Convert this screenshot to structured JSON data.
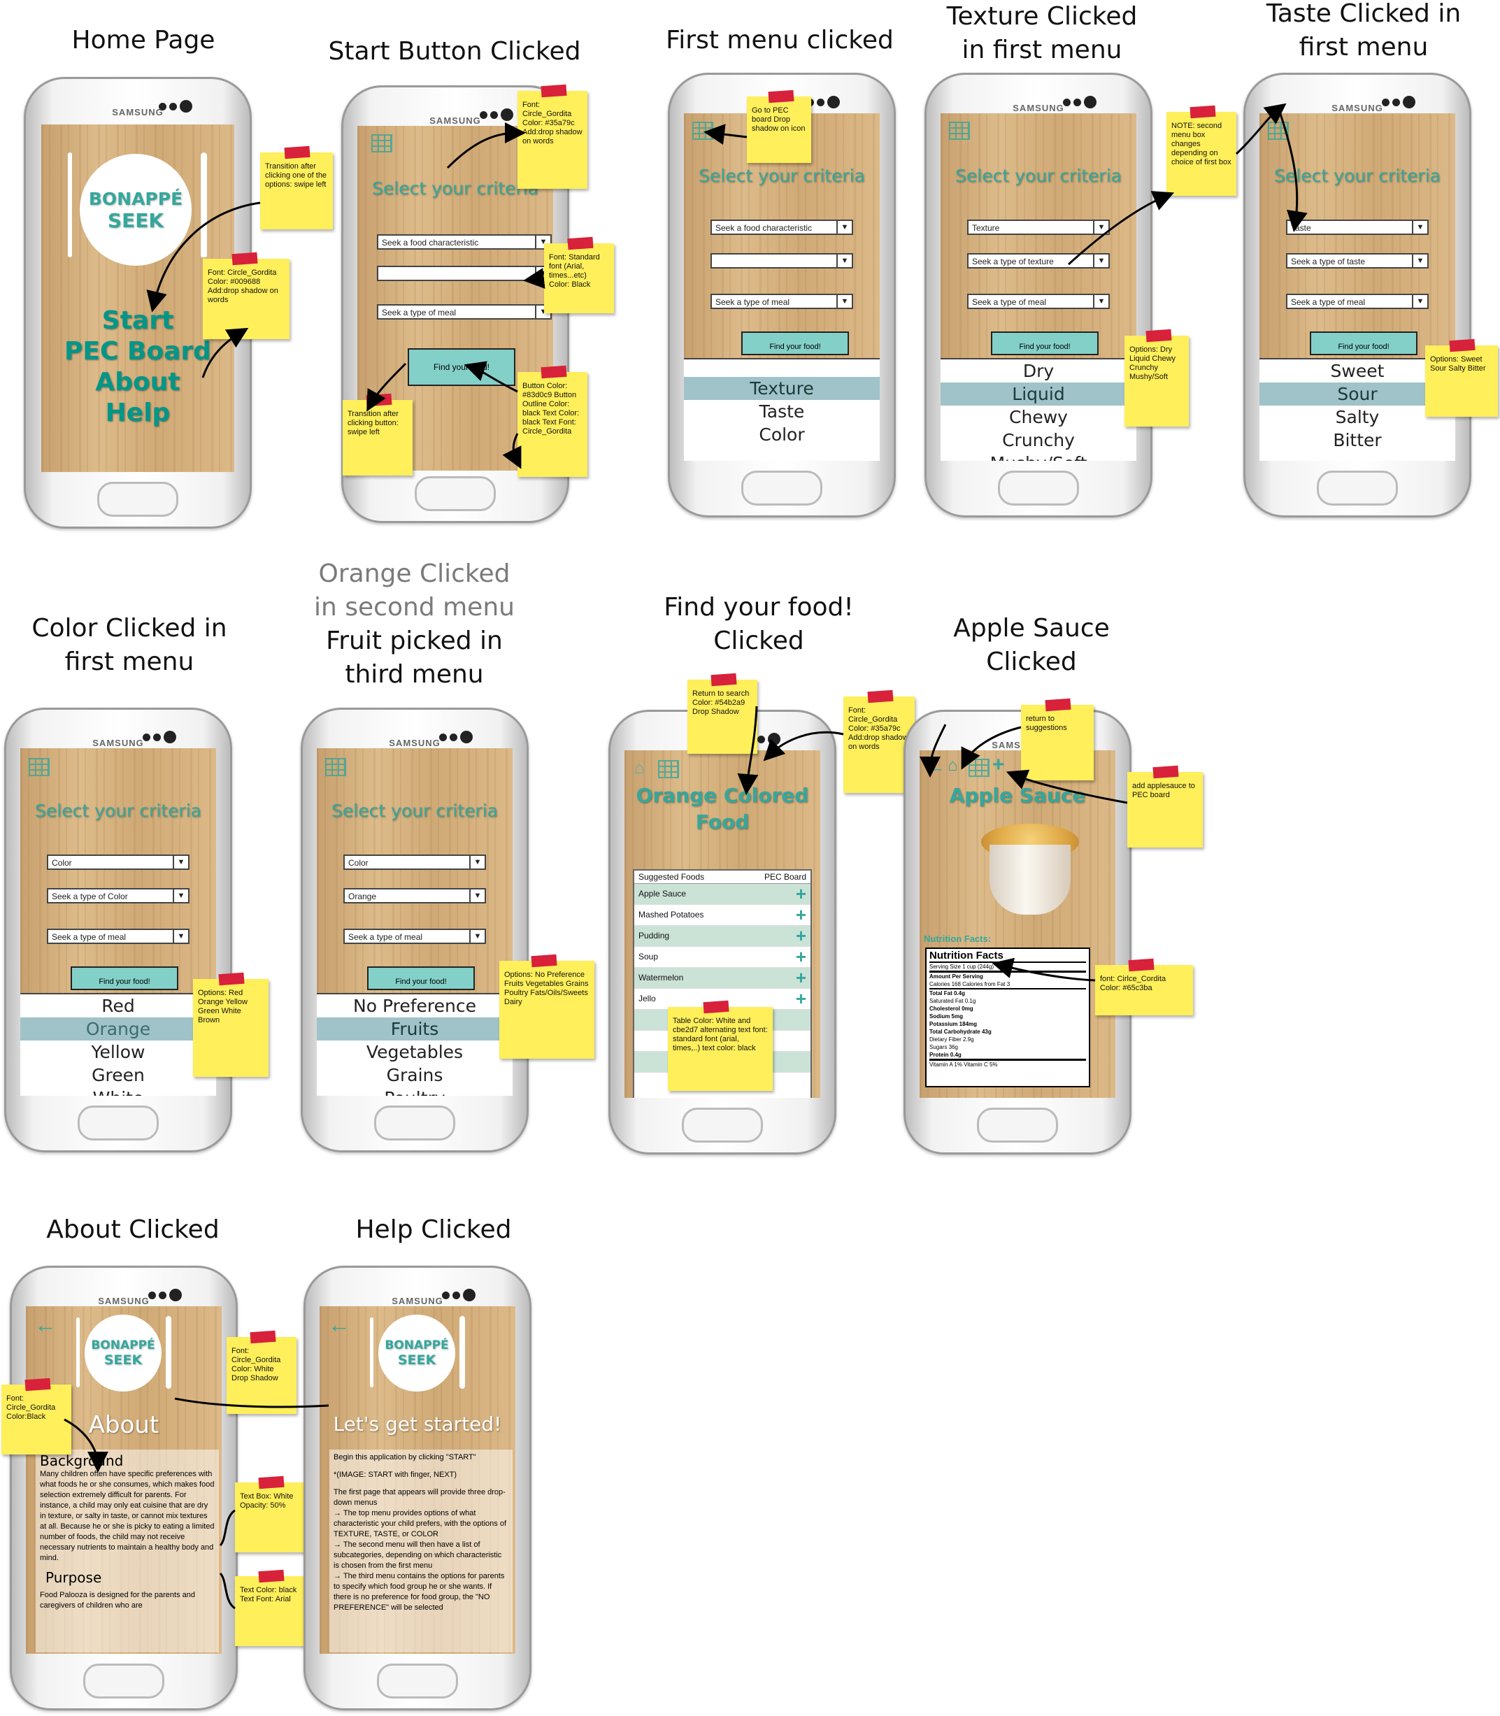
{
  "titles": {
    "home": "Home Page",
    "start": "Start Button Clicked",
    "first_menu": "First menu clicked",
    "texture": [
      "Texture Clicked",
      "in first menu"
    ],
    "taste": [
      "Taste Clicked in",
      "first menu"
    ],
    "color": [
      "Color Clicked in",
      "first menu"
    ],
    "orange_gray": [
      "Orange Clicked",
      "in second menu"
    ],
    "orange_black": [
      "Fruit picked in",
      "third menu"
    ],
    "find": [
      "Find your food!",
      "Clicked"
    ],
    "apple": [
      "Apple Sauce",
      "Clicked"
    ],
    "about": "About Clicked",
    "help": "Help Clicked"
  },
  "brand": "SAMSUNG",
  "logo": {
    "line1": "BONAPPÉ",
    "line2": "SEEK"
  },
  "home_menu": [
    "Start",
    "PEC Board",
    "About",
    "Help"
  ],
  "select_title": "Select your criteria",
  "find_button": "Find your food!",
  "dropdowns": {
    "start": [
      "Seek a food characteristic",
      "",
      "Seek a type of meal"
    ],
    "first": [
      "Seek a food characteristic",
      "",
      "Seek a type of meal"
    ],
    "texture": [
      "Texture",
      "Seek a type of texture",
      "Seek a type of meal"
    ],
    "taste": [
      "Taste",
      "Seek a type of taste",
      "Seek a type of meal"
    ],
    "color": [
      "Color",
      "Seek a type of Color",
      "Seek a type of meal"
    ],
    "orange": [
      "Color",
      "Orange",
      "Seek a type of meal"
    ]
  },
  "lists": {
    "first": [
      "Texture",
      "Taste",
      "Color"
    ],
    "texture": [
      "Dry",
      "Liquid",
      "Chewy",
      "Crunchy",
      "Mushy/Soft"
    ],
    "taste": [
      "Sweet",
      "Sour",
      "Salty",
      "Bitter"
    ],
    "color": [
      "Red",
      "Orange",
      "Yellow",
      "Green",
      "White"
    ],
    "orange": [
      "No Preference",
      "Fruits",
      "Vegetables",
      "Grains",
      "Poultry"
    ]
  },
  "food_page": {
    "title": [
      "Orange Colored",
      "Food"
    ],
    "header_left": "Suggested Foods",
    "header_right": "PEC Board",
    "items": [
      "Apple Sauce",
      "Mashed Potatoes",
      "Pudding",
      "Soup",
      "Watermelon",
      "Jello"
    ]
  },
  "apple_page": {
    "title": "Apple Sauce",
    "nutrition_label": "Nutrition Facts:",
    "facts_heading": "Nutrition Facts",
    "facts_lines": [
      "Serving Size 1 cup (244g)",
      "Amount Per Serving",
      "Calories 168   Calories from Fat 3",
      "Total Fat 0.4g",
      "Saturated Fat 0.1g",
      "Cholesterol 0mg",
      "Sodium 5mg",
      "Potassium 184mg",
      "Total Carbohydrate 43g",
      "Dietary Fiber 2.9g",
      "Sugars 36g",
      "Protein 0.4g",
      "Vitamin A 1%   Vitamin C 5%"
    ]
  },
  "about_page": {
    "title": "About",
    "background_heading": "Background",
    "background_text": "Many children often have specific preferences with what foods he or she consumes, which makes food selection extremely difficult for parents. For instance, a child may only eat cuisine that are dry in texture, or salty in taste, or cannot mix textures at all. Because he or she is picky to eating a limited number of foods, the child may not receive necessary nutrients to maintain a healthy body and mind.",
    "purpose_heading": "Purpose",
    "purpose_text": "Food Palooza is designed for the parents and caregivers of children who are"
  },
  "help_page": {
    "title": "Let's get started!",
    "lines": [
      "Begin this application by clicking \"START\"",
      "*(IMAGE: START with finger, NEXT)",
      "The first page that appears will provide three drop-down menus",
      "→       The top menu provides options of what characteristic your child prefers, with the options of TEXTURE, TASTE, or COLOR",
      "→       The second menu will then have a list of subcategories, depending on which characteristic is chosen from the first menu",
      "→       The third menu contains the options for parents to specify which food group he or she wants. If there is no preference for food group, the \"NO PREFERENCE\" will be selected"
    ]
  },
  "notes": {
    "home_transition": "Transition after clicking one of the options: swipe left",
    "home_font": "Font: Circle_Gordita Color: #009688 Add:drop shadow on words",
    "start_font": "Font: Circle_Gordita Color: #35a79c Add:drop shadow on words",
    "start_std": "Font: Standard font (Arial, times...etc) Color: Black",
    "start_button": "Button Color: #83d0c9 Button Outline Color: black Text Color: black Text Font: Circle_Gordita",
    "start_transition": "Transition after clicking button: swipe left",
    "first_pec": "Go to PEC board Drop shadow on icon",
    "texture_note": "NOTE: second menu box changes depending on choice of first box",
    "texture_options": "Options: Dry Liquid Chewy Crunchy Mushy/Soft",
    "taste_options": "Options: Sweet Sour Salty Bitter",
    "color_options": "Options: Red Orange Yellow Green White Brown",
    "orange_options": "Options: No Preference Fruits Vegetables Grains Poultry Fats/Oils/Sweets Dairy",
    "find_return": "Return to search Color: #54b2a9 Drop Shadow",
    "find_font": "Font: Circle_Gordita Color: #35a79c Add:drop shadow on words",
    "find_table": "Table Color: White and cbe2d7 alternating text font: standard font (arial, times,..) text color: black",
    "apple_return": "return to suggestions",
    "apple_add": "add applesauce to PEC board",
    "apple_font": "font: Cirlce_Cordita Color: #65c3ba",
    "about_font": "Font: Circle_Gordita Color:Black",
    "about_white": "Font: Circle_Gordita Color: White Drop Shadow",
    "about_textbox": "Text Box: White Opacity: 50%",
    "about_textcolor": "Text Color: black Text Font: Arial"
  },
  "colors": {
    "teal": "#35a79c",
    "home_green": "#009688",
    "button": "#83d0c9",
    "row_alt": "#cbe2d7",
    "note": "#ffef5a"
  }
}
